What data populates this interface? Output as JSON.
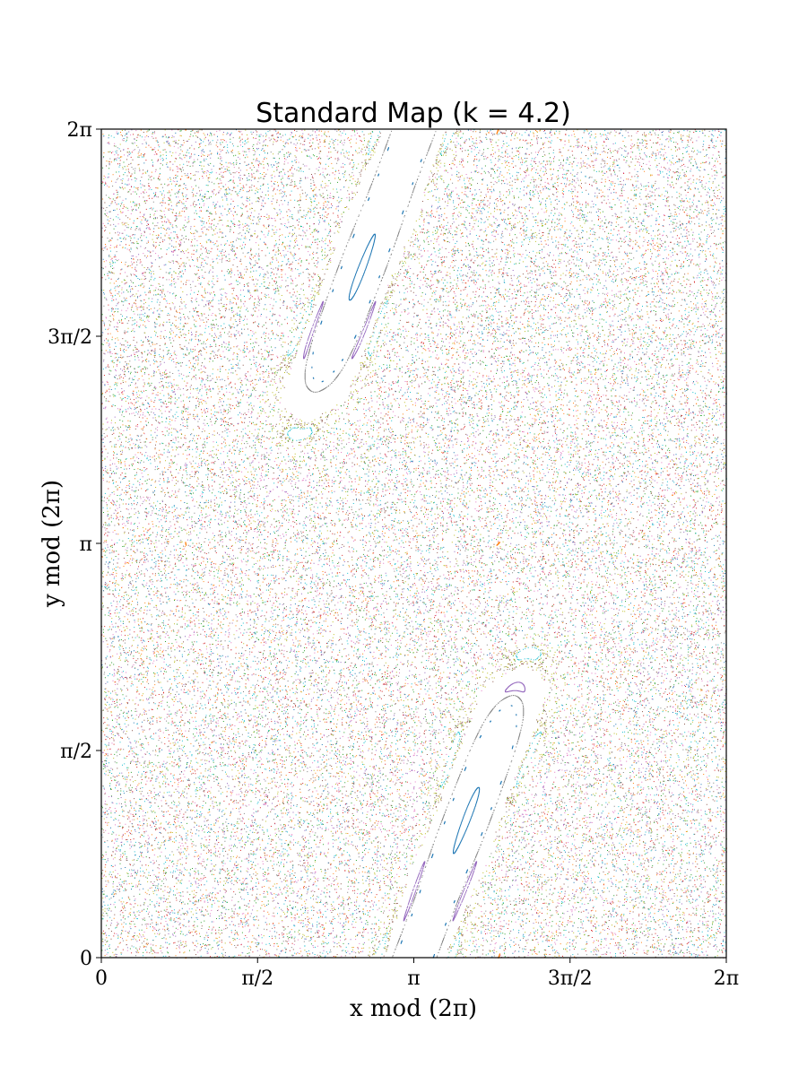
{
  "chart_data": {
    "type": "scatter",
    "title": "Standard Map (k = 4.2)",
    "xlabel": "x mod (2π)",
    "ylabel": "y mod (2π)",
    "xlim": [
      0,
      6.2832
    ],
    "ylim": [
      0,
      6.2832
    ],
    "x_ticks": [
      {
        "value": 0,
        "label": "0"
      },
      {
        "value": 1.5708,
        "label": "π/2"
      },
      {
        "value": 3.1416,
        "label": "π"
      },
      {
        "value": 4.7124,
        "label": "3π/2"
      },
      {
        "value": 6.2832,
        "label": "2π"
      }
    ],
    "y_ticks": [
      {
        "value": 0,
        "label": "0"
      },
      {
        "value": 1.5708,
        "label": "π/2"
      },
      {
        "value": 3.1416,
        "label": "π"
      },
      {
        "value": 4.7124,
        "label": "3π/2"
      },
      {
        "value": 6.2832,
        "label": "2π"
      }
    ],
    "k": 4.2,
    "grid": false,
    "marker_size": 1,
    "series_colors": [
      "#1f77b4",
      "#ff7f0e",
      "#2ca02c",
      "#d62728",
      "#9467bd",
      "#8c564b",
      "#e377c2",
      "#7f7f7f",
      "#bcbd22",
      "#17becf"
    ]
  }
}
